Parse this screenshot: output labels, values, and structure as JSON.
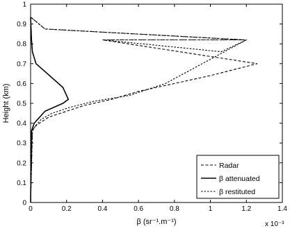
{
  "chart_data": {
    "type": "line",
    "title": "",
    "xlabel": "β (sr⁻¹.m⁻¹)",
    "ylabel": "Height (km)",
    "x_multiplier": "x 10⁻³",
    "xlim": [
      0,
      1.4
    ],
    "ylim": [
      0,
      1
    ],
    "xticks": [
      "0",
      "0.2",
      "0.4",
      "0.6",
      "0.8",
      "1",
      "1.2",
      "1.4"
    ],
    "yticks": [
      "0",
      "0.1",
      "0.2",
      "0.3",
      "0.4",
      "0.5",
      "0.6",
      "0.7",
      "0.8",
      "0.9",
      "1"
    ],
    "grid": false,
    "legend_position": "bottom-right",
    "series": [
      {
        "name": "Radar",
        "style": "dashed",
        "x": [
          0,
          0.01,
          0.02,
          0.05,
          0.1,
          0.2,
          0.3,
          0.45,
          0.6,
          0.8,
          1.0,
          1.26,
          0.4,
          1.19,
          0.08,
          0.0
        ],
        "y": [
          0.0,
          0.36,
          0.38,
          0.4,
          0.43,
          0.46,
          0.49,
          0.52,
          0.56,
          0.6,
          0.64,
          0.7,
          0.82,
          0.82,
          0.875,
          0.935
        ]
      },
      {
        "name": "β attenuated",
        "style": "solid",
        "x": [
          0,
          0.005,
          0.02,
          0.08,
          0.18,
          0.21,
          0.18,
          0.08,
          0.03,
          0.01,
          0.005,
          0.0
        ],
        "y": [
          0.0,
          0.36,
          0.4,
          0.46,
          0.5,
          0.52,
          0.58,
          0.66,
          0.7,
          0.76,
          0.82,
          0.935
        ]
      },
      {
        "name": "β restituted",
        "style": "dashdot",
        "x": [
          0,
          0.01,
          0.03,
          0.06,
          0.12,
          0.22,
          0.35,
          0.55,
          0.75,
          1.2,
          1.06,
          0.4,
          1.19,
          0.08,
          0.0
        ],
        "y": [
          0.0,
          0.36,
          0.39,
          0.42,
          0.45,
          0.48,
          0.51,
          0.54,
          0.6,
          0.82,
          0.76,
          0.82,
          0.82,
          0.875,
          0.935
        ]
      }
    ]
  }
}
